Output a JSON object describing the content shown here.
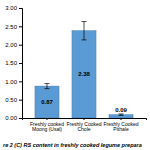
{
  "chart_data": {
    "type": "bar",
    "title": "re 2 (C) RS content in freshly cooked legume prepara",
    "categories": [
      "Freshly cooked\nMoong (Usal)",
      "Freshly Cooked\nChole",
      "Freshly Cooked\nPithale"
    ],
    "values": [
      0.87,
      2.38,
      0.09
    ],
    "errors": [
      0.07,
      0.25,
      0.02
    ],
    "color": "#5b9bd5",
    "ylim": [
      0,
      3.0
    ],
    "yticks": [
      {
        "value": 0,
        "label": "0.00"
      },
      {
        "value": 0.5,
        "label": "0.50"
      },
      {
        "value": 1,
        "label": "1.00"
      },
      {
        "value": 1.5,
        "label": "1.50"
      },
      {
        "value": 2,
        "label": "2.00"
      },
      {
        "value": 2.5,
        "label": "2.50"
      },
      {
        "value": 3,
        "label": "3.00"
      }
    ],
    "data_labels": true,
    "grid": false
  }
}
